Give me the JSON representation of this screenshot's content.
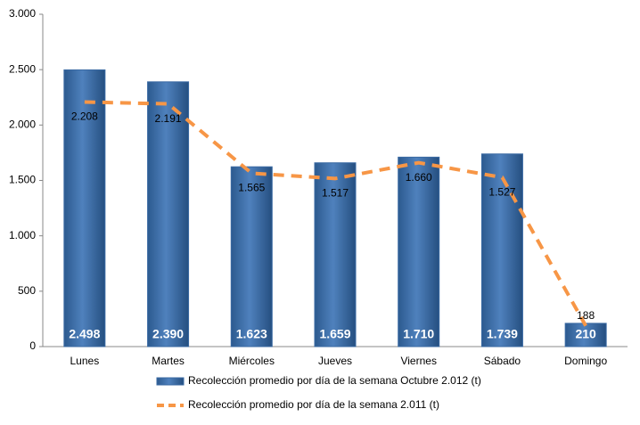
{
  "chart_data": {
    "type": "bar",
    "categories": [
      "Lunes",
      "Martes",
      "Miércoles",
      "Jueves",
      "Viernes",
      "Sábado",
      "Domingo"
    ],
    "series": [
      {
        "name": "Recolección promedio por día de la semana Octubre 2.012 (t)",
        "type": "bar",
        "color": "#4f81bd",
        "values": [
          2498,
          2390,
          1623,
          1659,
          1710,
          1739,
          210
        ],
        "value_labels": [
          "2.498",
          "2.390",
          "1.623",
          "1.659",
          "1.710",
          "1.739",
          "210"
        ]
      },
      {
        "name": "Recolección promedio por día de la semana 2.011 (t)",
        "type": "line",
        "color": "#f79646",
        "values": [
          2208,
          2191,
          1565,
          1517,
          1660,
          1527,
          188
        ],
        "value_labels": [
          "2.208",
          "2.191",
          "1.565",
          "1.517",
          "1.660",
          "1.527",
          "188"
        ]
      }
    ],
    "ylim": [
      0,
      3000
    ],
    "yticks": [
      0,
      500,
      {
        "value": 1000,
        "label": "1.000"
      },
      {
        "value": 1500,
        "label": "1.500"
      },
      {
        "value": 2000,
        "label": "2.000"
      },
      {
        "value": 2500,
        "label": "2.500"
      },
      {
        "value": 3000,
        "label": "3.000"
      }
    ],
    "grid": false,
    "legend": "bottom"
  }
}
